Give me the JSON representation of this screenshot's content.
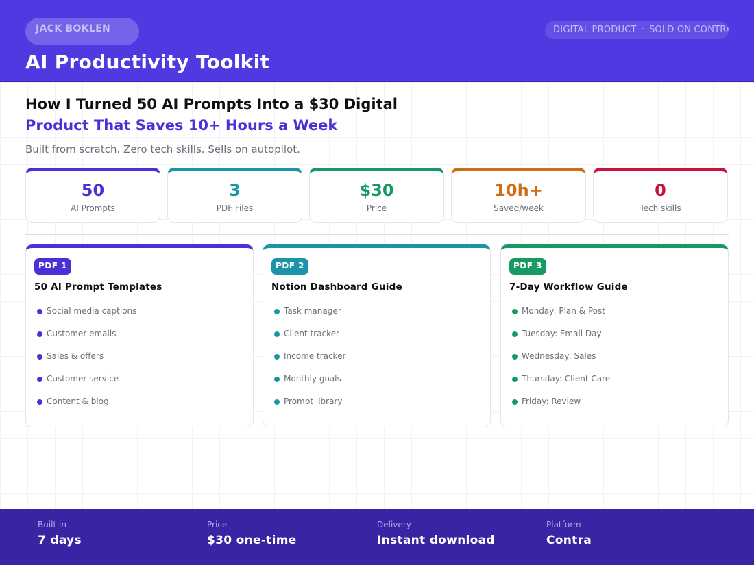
{
  "header": {
    "author": "JACK BOKLEN",
    "meta_left": "DIGITAL PRODUCT",
    "meta_sep": "·",
    "meta_right": "SOLD ON CONTRA",
    "title": "AI Productivity Toolkit",
    "color": "#5139e1"
  },
  "hero": {
    "line1": "How I Turned 50 AI Prompts Into a $30 Digital",
    "line2": "Product That Saves 10+ Hours a Week",
    "subtitle": "Built from scratch. Zero tech skills. Sells on autopilot."
  },
  "stats": [
    {
      "value": "50",
      "label": "AI Prompts",
      "color": "#4a30d6"
    },
    {
      "value": "3",
      "label": "PDF Files",
      "color": "#1a94a8"
    },
    {
      "value": "$30",
      "label": "Price",
      "color": "#159a62"
    },
    {
      "value": "10h+",
      "label": "Saved/week",
      "color": "#cf6d16"
    },
    {
      "value": "0",
      "label": "Tech skills",
      "color": "#c8133f"
    }
  ],
  "cards": [
    {
      "badge": "PDF 1",
      "title": "50 AI Prompt Templates",
      "color": "#4a30d6",
      "items": [
        "Social media captions",
        "Customer emails",
        "Sales & offers",
        "Customer service",
        "Content & blog"
      ]
    },
    {
      "badge": "PDF 2",
      "title": "Notion Dashboard Guide",
      "color": "#1a94a8",
      "items": [
        "Task manager",
        "Client tracker",
        "Income tracker",
        "Monthly goals",
        "Prompt library"
      ]
    },
    {
      "badge": "PDF 3",
      "title": "7-Day Workflow Guide",
      "color": "#159a62",
      "items": [
        "Monday: Plan & Post",
        "Tuesday: Email Day",
        "Wednesday: Sales",
        "Thursday: Client Care",
        "Friday: Review"
      ]
    }
  ],
  "footer": [
    {
      "label": "Built in",
      "value": "7 days"
    },
    {
      "label": "Price",
      "value": "$30 one-time"
    },
    {
      "label": "Delivery",
      "value": "Instant download"
    },
    {
      "label": "Platform",
      "value": "Contra"
    }
  ]
}
